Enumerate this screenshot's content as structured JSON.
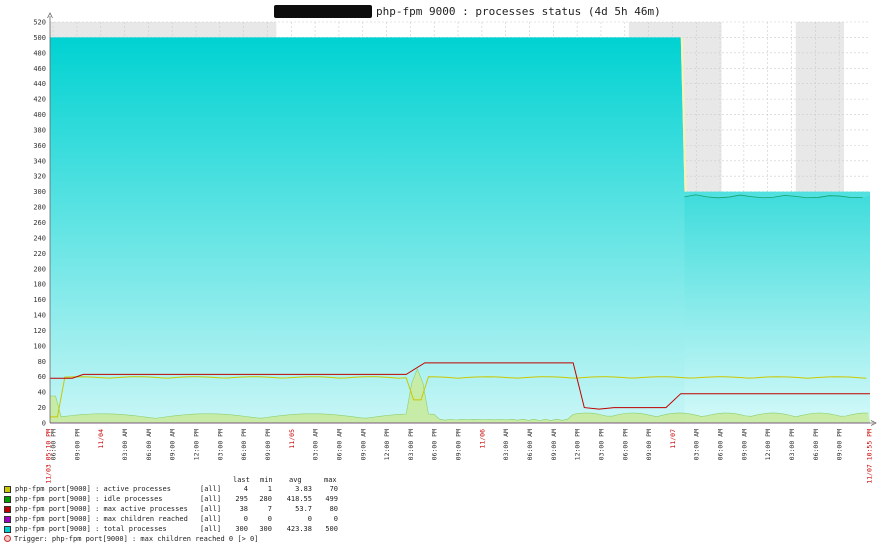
{
  "title": "php-fpm 9000 : processes status (4d 5h 46m)",
  "colors": {
    "active": "#c8c800",
    "idle": "#00a000",
    "max_active": "#c00000",
    "max_children": "#a000c8",
    "total": "#00d2d2",
    "grid": "#cccccc",
    "weekend_shade": "#e8e8e8",
    "date_label": "#cc0000"
  },
  "legend": {
    "headers": {
      "last": "last",
      "min": "min",
      "avg": "avg",
      "max": "max"
    },
    "rows": [
      {
        "name": "php-fpm port[9000] : active processes",
        "scope": "[all]",
        "last": "4",
        "min": "1",
        "avg": "3.83",
        "max": "70",
        "color": "#c8c800"
      },
      {
        "name": "php-fpm port[9000] : idle processes",
        "scope": "[all]",
        "last": "295",
        "min": "280",
        "avg": "418.55",
        "max": "499",
        "color": "#00a000"
      },
      {
        "name": "php-fpm port[9000] : max active processes",
        "scope": "[all]",
        "last": "38",
        "min": "7",
        "avg": "53.7",
        "max": "80",
        "color": "#c00000"
      },
      {
        "name": "php-fpm port[9000] : max children reached",
        "scope": "[all]",
        "last": "0",
        "min": "0",
        "avg": "0",
        "max": "0",
        "color": "#a000c8"
      },
      {
        "name": "php-fpm port[9000] : total processes",
        "scope": "[all]",
        "last": "300",
        "min": "300",
        "avg": "423.38",
        "max": "500",
        "color": "#00d2d2"
      }
    ]
  },
  "trigger": "Trigger: php-fpm port[9000] : max children reached  0   [> 0]",
  "chart_data": {
    "type": "area",
    "title": "php-fpm 9000 : processes status (4d 5h 46m)",
    "ylim": [
      0,
      520
    ],
    "yticks": [
      0,
      20,
      40,
      60,
      80,
      100,
      120,
      140,
      160,
      180,
      200,
      220,
      240,
      260,
      280,
      300,
      320,
      340,
      360,
      380,
      400,
      420,
      440,
      460,
      480,
      500,
      520
    ],
    "grid": true,
    "x_start_label": "11/03 05:10 PM",
    "x_end_label": "11/07 10:55 PM",
    "x_tick_labels": [
      "06:00 PM",
      "09:00 PM",
      "11/04",
      "03:00 AM",
      "06:00 AM",
      "09:00 AM",
      "12:00 PM",
      "03:00 PM",
      "06:00 PM",
      "09:00 PM",
      "11/05",
      "03:00 AM",
      "06:00 AM",
      "09:00 AM",
      "12:00 PM",
      "03:00 PM",
      "06:00 PM",
      "09:00 PM",
      "11/06",
      "03:00 AM",
      "06:00 AM",
      "09:00 AM",
      "12:00 PM",
      "03:00 PM",
      "06:00 PM",
      "09:00 PM",
      "11/07",
      "03:00 AM",
      "06:00 AM",
      "09:00 AM",
      "12:00 PM",
      "03:00 PM",
      "06:00 PM",
      "09:00 PM"
    ],
    "x_hours": [
      0,
      24.5,
      101,
      142,
      172,
      211,
      221
    ],
    "series": [
      {
        "name": "php-fpm port[9000] : total processes",
        "values": [
          500,
          500,
          500,
          500,
          300,
          300,
          300
        ]
      },
      {
        "name": "php-fpm port[9000] : idle processes",
        "values": [
          440,
          470,
          436,
          431,
          296,
          295,
          295
        ]
      },
      {
        "name": "php-fpm port[9000] : max active processes",
        "values": [
          58,
          63,
          65,
          78,
          20,
          38,
          38
        ]
      },
      {
        "name": "php-fpm port[9000] : active processes",
        "values": [
          3,
          4,
          3,
          5,
          4,
          4,
          4
        ]
      },
      {
        "name": "php-fpm port[9000] : max children reached",
        "values": [
          0,
          0,
          0,
          0,
          0,
          0,
          0
        ]
      }
    ]
  }
}
